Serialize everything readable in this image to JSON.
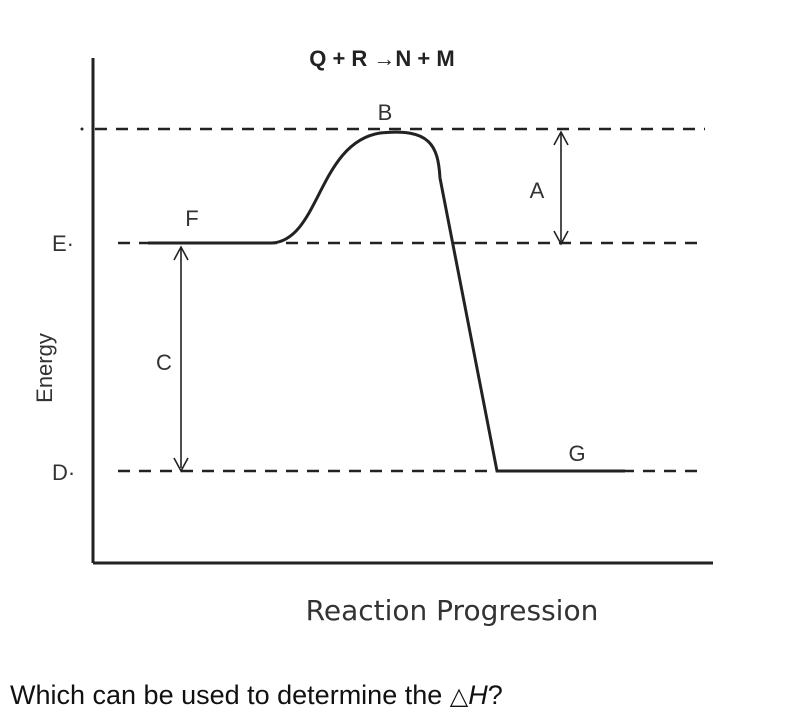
{
  "diagram": {
    "title": "Q + R →N + M",
    "y_axis_label": "Energy",
    "x_axis_label": "Reaction Progression",
    "labels": {
      "A": "A",
      "B": "B",
      "C": "C",
      "D": "D·",
      "E": "E·",
      "F": "F",
      "G": "G"
    }
  },
  "question": {
    "prefix": "Which can be used to determine the ",
    "delta_symbol": "△",
    "variable": "H",
    "suffix": "?"
  }
}
